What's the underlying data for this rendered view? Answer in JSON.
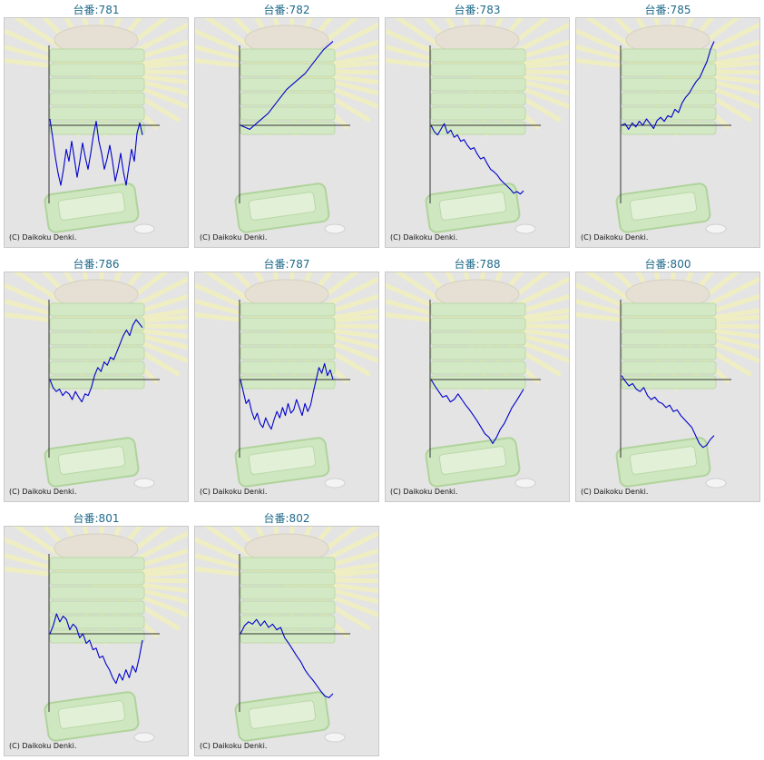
{
  "machines": [
    {
      "number": "781",
      "chart_data": {
        "type": "line",
        "y": [
          0.08,
          -0.15,
          -0.4,
          -0.6,
          -0.75,
          -0.55,
          -0.3,
          -0.45,
          -0.2,
          -0.42,
          -0.65,
          -0.45,
          -0.22,
          -0.4,
          -0.55,
          -0.35,
          -0.12,
          0.05,
          -0.2,
          -0.35,
          -0.55,
          -0.42,
          -0.25,
          -0.45,
          -0.7,
          -0.55,
          -0.35,
          -0.58,
          -0.75,
          -0.52,
          -0.3,
          -0.45,
          -0.1,
          0.03,
          -0.12
        ]
      }
    },
    {
      "number": "782",
      "chart_data": {
        "type": "line",
        "y": [
          0,
          -0.05,
          0.05,
          0.15,
          0.3,
          0.45,
          0.55,
          0.65,
          0.8,
          0.95,
          1.05
        ]
      }
    },
    {
      "number": "783",
      "chart_data": {
        "type": "line",
        "y": [
          0,
          -0.08,
          -0.12,
          -0.05,
          0.02,
          -0.1,
          -0.06,
          -0.15,
          -0.12,
          -0.2,
          -0.18,
          -0.25,
          -0.3,
          -0.28,
          -0.36,
          -0.42,
          -0.4,
          -0.48,
          -0.55,
          -0.58,
          -0.62,
          -0.68,
          -0.72,
          -0.76,
          -0.8,
          -0.85,
          -0.83,
          -0.86,
          -0.82
        ]
      }
    },
    {
      "number": "785",
      "chart_data": {
        "type": "line",
        "y": [
          0,
          0.02,
          -0.05,
          0.03,
          -0.02,
          0.05,
          0.0,
          0.08,
          0.02,
          -0.04,
          0.06,
          0.1,
          0.05,
          0.12,
          0.1,
          0.2,
          0.16,
          0.28,
          0.35,
          0.4,
          0.48,
          0.55,
          0.6,
          0.7,
          0.8,
          0.95,
          1.05
        ]
      }
    },
    {
      "number": "786",
      "chart_data": {
        "type": "line",
        "y": [
          0,
          -0.1,
          -0.15,
          -0.12,
          -0.2,
          -0.15,
          -0.18,
          -0.25,
          -0.15,
          -0.22,
          -0.28,
          -0.18,
          -0.2,
          -0.1,
          0.05,
          0.15,
          0.1,
          0.22,
          0.18,
          0.28,
          0.25,
          0.35,
          0.45,
          0.55,
          0.62,
          0.55,
          0.68,
          0.75,
          0.7,
          0.65
        ]
      }
    },
    {
      "number": "787",
      "chart_data": {
        "type": "line",
        "y": [
          0,
          -0.15,
          -0.3,
          -0.25,
          -0.4,
          -0.5,
          -0.42,
          -0.55,
          -0.6,
          -0.48,
          -0.56,
          -0.62,
          -0.5,
          -0.4,
          -0.48,
          -0.35,
          -0.45,
          -0.3,
          -0.42,
          -0.38,
          -0.25,
          -0.35,
          -0.45,
          -0.3,
          -0.4,
          -0.32,
          -0.15,
          0.0,
          0.15,
          0.08,
          0.2,
          0.05,
          0.12,
          0.0
        ]
      }
    },
    {
      "number": "788",
      "chart_data": {
        "type": "line",
        "y": [
          0,
          -0.08,
          -0.15,
          -0.22,
          -0.2,
          -0.28,
          -0.25,
          -0.18,
          -0.25,
          -0.32,
          -0.38,
          -0.45,
          -0.52,
          -0.6,
          -0.68,
          -0.72,
          -0.8,
          -0.72,
          -0.62,
          -0.55,
          -0.45,
          -0.35,
          -0.28,
          -0.2,
          -0.12
        ]
      }
    },
    {
      "number": "800",
      "chart_data": {
        "type": "line",
        "y": [
          0.05,
          -0.02,
          -0.08,
          -0.05,
          -0.12,
          -0.15,
          -0.1,
          -0.2,
          -0.25,
          -0.22,
          -0.28,
          -0.3,
          -0.35,
          -0.32,
          -0.4,
          -0.38,
          -0.45,
          -0.5,
          -0.55,
          -0.6,
          -0.7,
          -0.8,
          -0.85,
          -0.82,
          -0.75,
          -0.7
        ]
      }
    },
    {
      "number": "801",
      "chart_data": {
        "type": "line",
        "y": [
          0,
          0.1,
          0.25,
          0.15,
          0.22,
          0.18,
          0.05,
          0.12,
          0.08,
          -0.05,
          0.0,
          -0.12,
          -0.08,
          -0.2,
          -0.18,
          -0.3,
          -0.28,
          -0.38,
          -0.45,
          -0.55,
          -0.62,
          -0.5,
          -0.58,
          -0.45,
          -0.55,
          -0.4,
          -0.48,
          -0.3,
          -0.08
        ]
      }
    },
    {
      "number": "802",
      "chart_data": {
        "type": "line",
        "y": [
          0,
          0.1,
          0.15,
          0.12,
          0.18,
          0.1,
          0.16,
          0.08,
          0.12,
          0.05,
          0.08,
          -0.05,
          -0.12,
          -0.2,
          -0.28,
          -0.35,
          -0.45,
          -0.52,
          -0.58,
          -0.65,
          -0.72,
          -0.78,
          -0.8,
          -0.75
        ]
      }
    }
  ],
  "labels": {
    "title_prefix": "台番:",
    "copyright": "(C) Daikoku Denki."
  },
  "colors": {
    "line": "#0000cc",
    "axis": "#333333",
    "title": "#1f6a8a",
    "panel_bg": "#e4e4e4"
  }
}
